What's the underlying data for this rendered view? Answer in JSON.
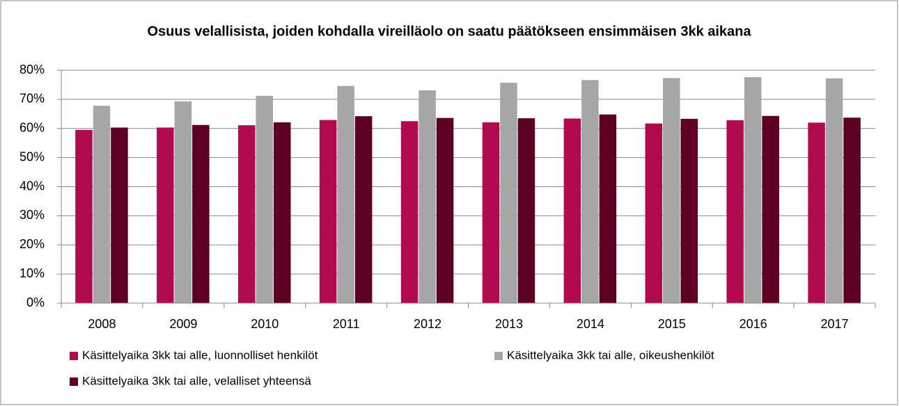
{
  "chart_data": {
    "type": "bar",
    "title": "Osuus velallisista, joiden kohdalla vireilläolo on saatu päätökseen ensimmäisen 3kk aikana",
    "categories": [
      "2008",
      "2009",
      "2010",
      "2011",
      "2012",
      "2013",
      "2014",
      "2015",
      "2016",
      "2017"
    ],
    "series": [
      {
        "name": "Käsittelyaika 3kk tai alle, luonnolliset henkilöt",
        "color": "#b10a4f",
        "values": [
          59.5,
          60.3,
          61.1,
          62.9,
          62.5,
          62.1,
          63.4,
          61.7,
          62.8,
          62.0
        ]
      },
      {
        "name": "Käsittelyaika 3kk tai alle, oikeushenkilöt",
        "color": "#a6a6a6",
        "values": [
          67.8,
          69.3,
          71.2,
          74.6,
          73.1,
          75.7,
          76.6,
          77.3,
          77.6,
          77.2
        ]
      },
      {
        "name": "Käsittelyaika 3kk tai alle, velalliset yhteensä",
        "color": "#5d0024",
        "values": [
          60.3,
          61.2,
          62.1,
          64.2,
          63.6,
          63.5,
          64.8,
          63.3,
          64.3,
          63.7
        ]
      }
    ],
    "ylim": [
      0,
      80
    ],
    "yticks": [
      {
        "value": 0,
        "label": "0%"
      },
      {
        "value": 10,
        "label": "10%"
      },
      {
        "value": 20,
        "label": "20%"
      },
      {
        "value": 30,
        "label": "30%"
      },
      {
        "value": 40,
        "label": "40%"
      },
      {
        "value": 50,
        "label": "50%"
      },
      {
        "value": 60,
        "label": "60%"
      },
      {
        "value": 70,
        "label": "70%"
      },
      {
        "value": 80,
        "label": "80%"
      }
    ],
    "grid": true,
    "legend": "bottom"
  }
}
